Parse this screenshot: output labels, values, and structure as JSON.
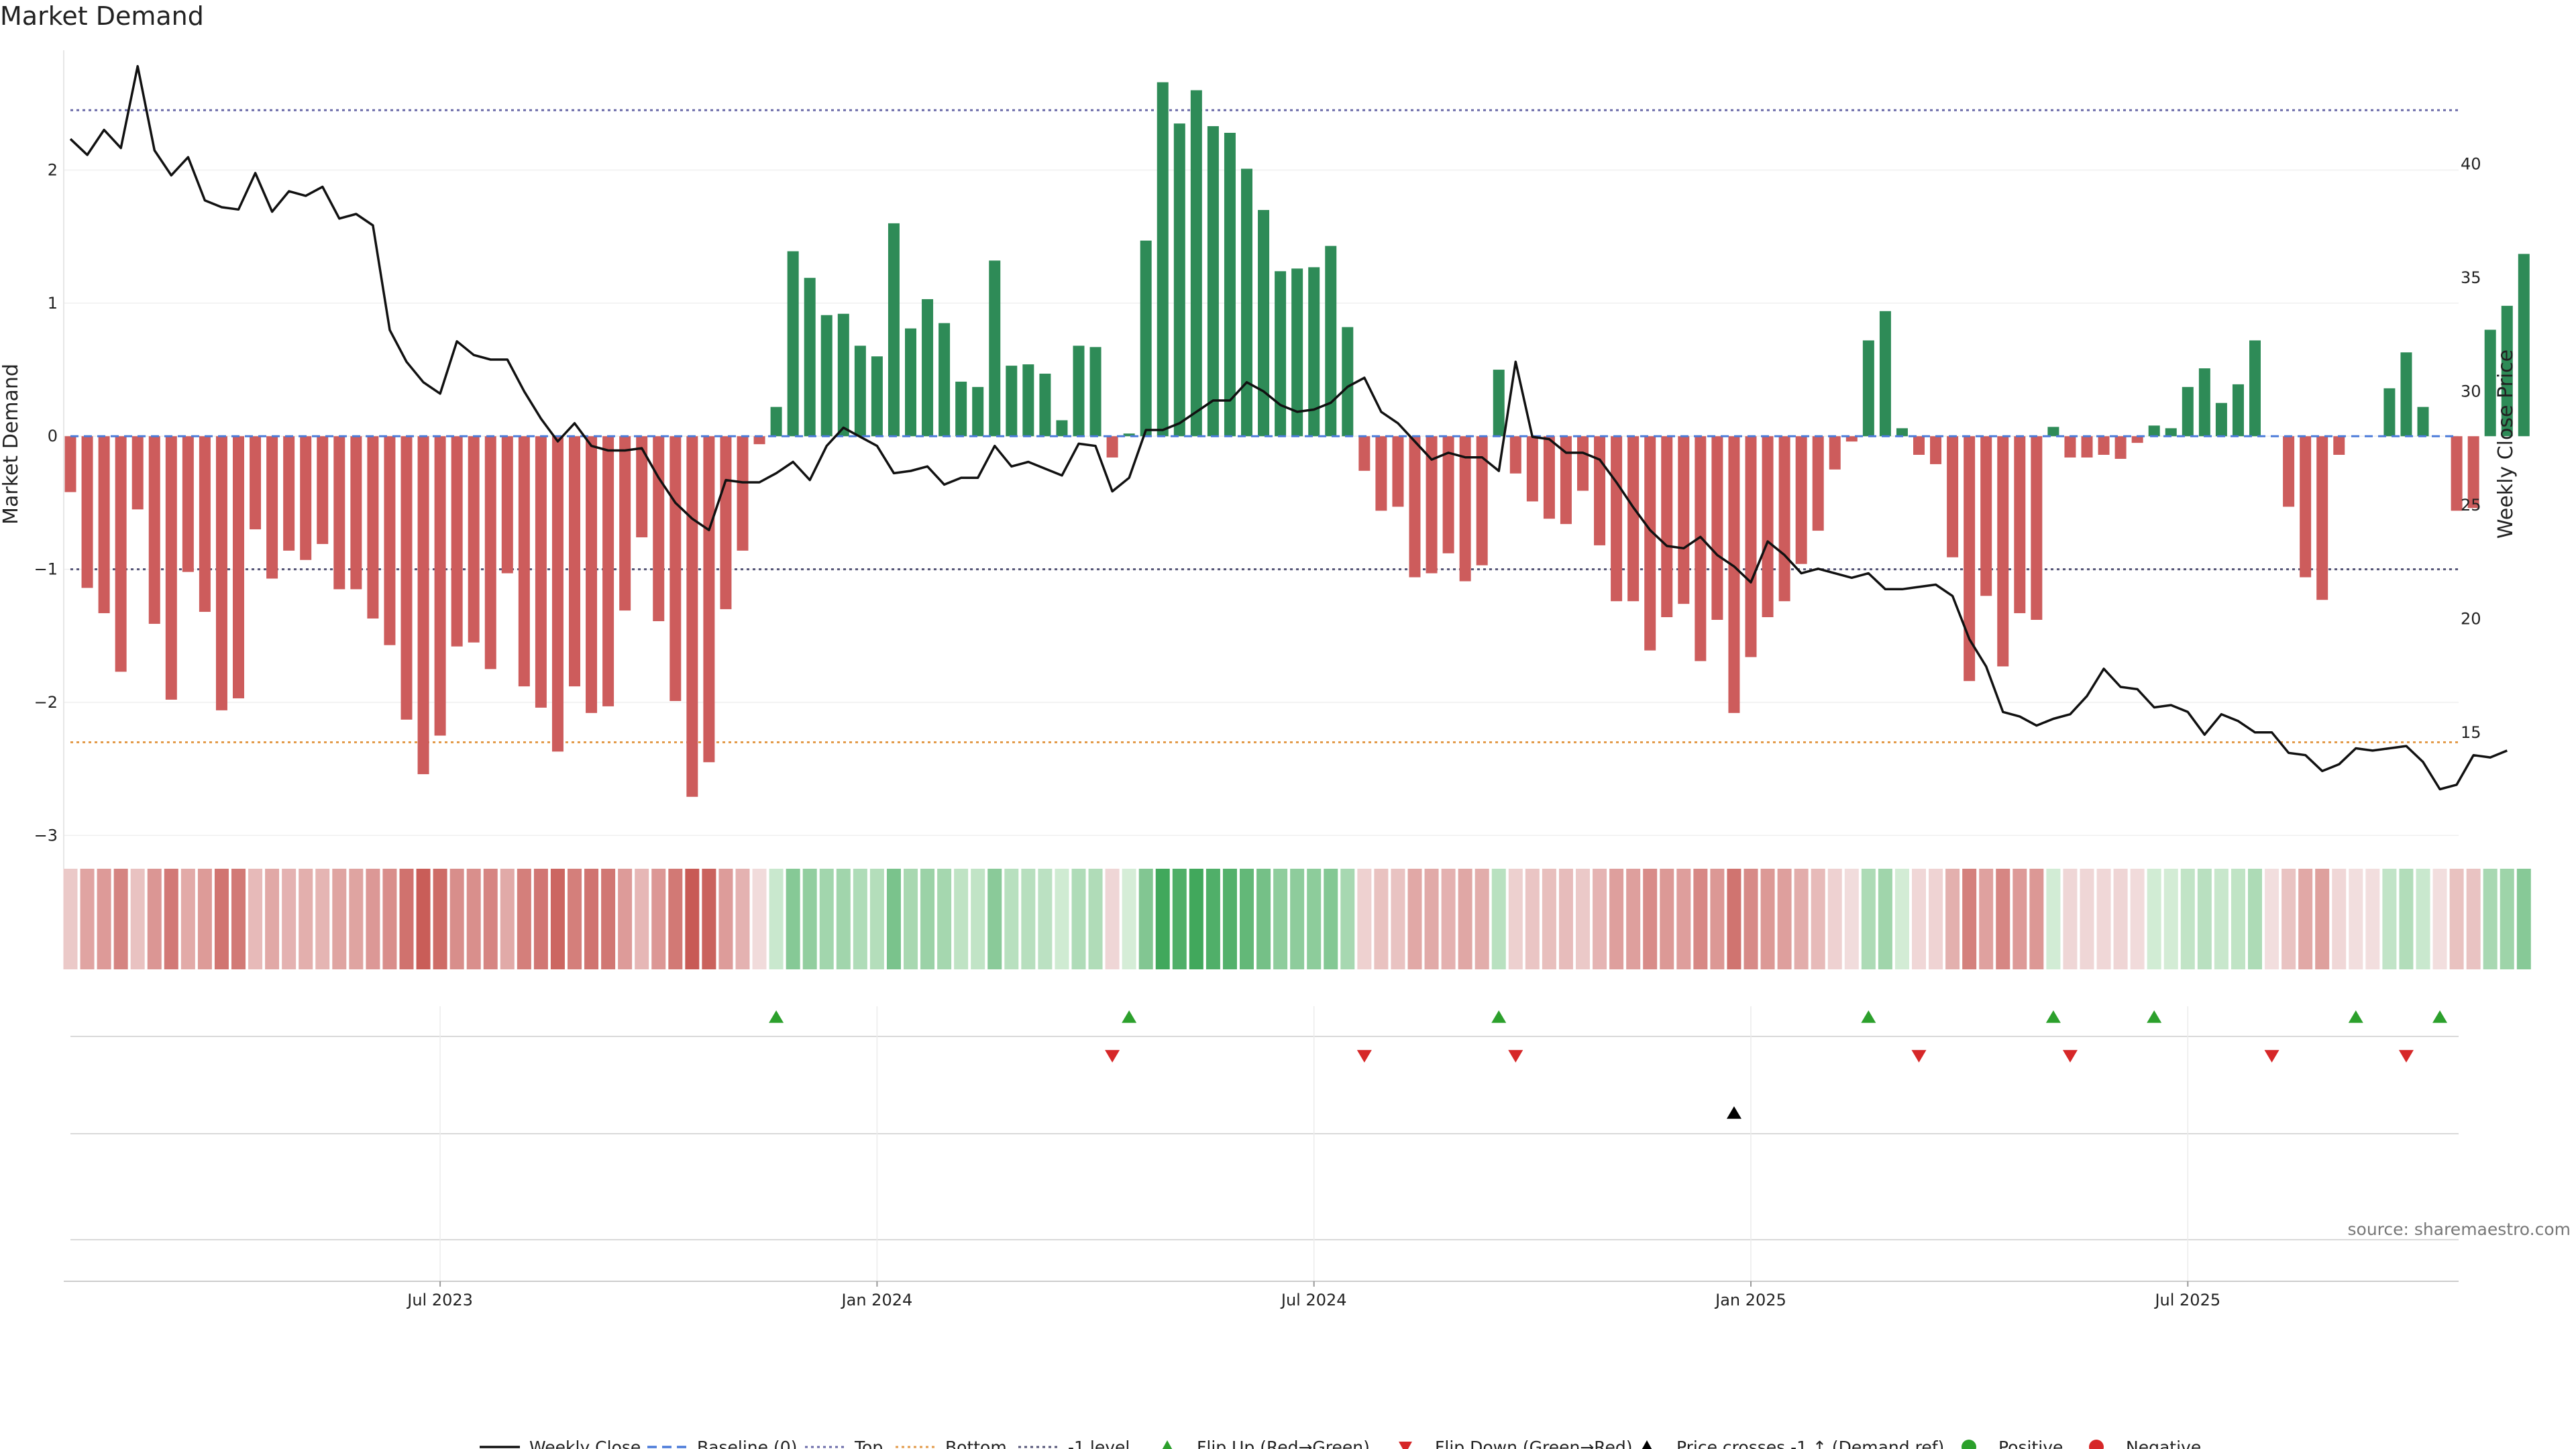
{
  "title": "Market Demand",
  "source": "source: sharemaestro.com",
  "colors": {
    "positive_bar": "#2e8b57",
    "negative_bar": "#cd5c5c",
    "price_line": "#111111",
    "top_line": "#6a6aa8",
    "bottom_line": "#e39b4a",
    "minus_one_line": "#555577",
    "flip_up": "#2ca02c",
    "flip_down": "#d62728",
    "cross_marker": "#000000"
  },
  "chart_data": {
    "type": "bar",
    "title": "Market Demand",
    "ylabel": "Market Demand",
    "y2label": "Weekly Close Price",
    "ylim": [
      -3.2,
      2.9
    ],
    "y2lim": [
      9.3,
      45.0
    ],
    "yticks": [
      -3,
      -2,
      -1,
      0,
      1,
      2
    ],
    "y2ticks": [
      15,
      20,
      25,
      30,
      35,
      40
    ],
    "x_ticks": [
      {
        "label": "Jul 2023",
        "index": 22
      },
      {
        "label": "Jan 2024",
        "index": 48
      },
      {
        "label": "Jul 2024",
        "index": 74
      },
      {
        "label": "Jan 2025",
        "index": 100
      },
      {
        "label": "Jul 2025",
        "index": 126
      }
    ],
    "reference_lines": {
      "top": 2.45,
      "bottom": -2.3,
      "minus_one": -1.0,
      "baseline": 0
    },
    "demand": [
      -0.42,
      -1.14,
      -1.33,
      -1.77,
      -0.55,
      -1.41,
      -1.98,
      -1.02,
      -1.32,
      -2.06,
      -1.97,
      -0.7,
      -1.07,
      -0.86,
      -0.93,
      -0.81,
      -1.15,
      -1.15,
      -1.37,
      -1.57,
      -2.13,
      -2.54,
      -2.25,
      -1.58,
      -1.55,
      -1.75,
      -1.03,
      -1.88,
      -2.04,
      -2.37,
      -1.88,
      -2.08,
      -2.03,
      -1.31,
      -0.76,
      -1.39,
      -1.99,
      -2.71,
      -2.45,
      -1.3,
      -0.86,
      -0.06,
      0.22,
      1.39,
      1.19,
      0.91,
      0.92,
      0.68,
      0.6,
      1.6,
      0.81,
      1.03,
      0.85,
      0.41,
      0.37,
      1.32,
      0.53,
      0.54,
      0.47,
      0.12,
      0.68,
      0.67,
      -0.16,
      0.02,
      1.47,
      2.66,
      2.35,
      2.6,
      2.33,
      2.28,
      2.01,
      1.7,
      1.24,
      1.26,
      1.27,
      1.43,
      0.82,
      -0.26,
      -0.56,
      -0.53,
      -1.06,
      -1.03,
      -0.88,
      -1.09,
      -0.97,
      0.5,
      -0.28,
      -0.49,
      -0.62,
      -0.66,
      -0.41,
      -0.82,
      -1.24,
      -1.24,
      -1.61,
      -1.36,
      -1.26,
      -1.69,
      -1.38,
      -2.08,
      -1.66,
      -1.36,
      -1.24,
      -0.96,
      -0.71,
      -0.25,
      -0.04,
      0.72,
      0.94,
      0.06,
      -0.14,
      -0.21,
      -0.91,
      -1.84,
      -1.2,
      -1.73,
      -1.33,
      -1.38,
      0.07,
      -0.16,
      -0.16,
      -0.14,
      -0.17,
      -0.05,
      0.08,
      0.06,
      0.37,
      0.51,
      0.25,
      0.39,
      0.72,
      0.0,
      -0.53,
      -1.06,
      -1.23,
      -0.14,
      0.0,
      0.0,
      0.36,
      0.63,
      0.22,
      0.0,
      -0.56,
      -0.54,
      0.8,
      0.98,
      1.37
    ],
    "weekly_close": [
      41.1,
      40.4,
      41.5,
      40.7,
      44.3,
      40.6,
      39.5,
      40.3,
      38.4,
      38.1,
      38.0,
      39.6,
      37.9,
      38.8,
      38.6,
      39.0,
      37.6,
      37.8,
      37.3,
      32.7,
      31.3,
      30.4,
      29.9,
      32.2,
      31.6,
      31.4,
      31.4,
      30.0,
      28.8,
      27.8,
      28.6,
      27.6,
      27.4,
      27.4,
      27.5,
      26.2,
      25.1,
      24.4,
      23.9,
      26.1,
      26.0,
      26.0,
      26.4,
      26.9,
      26.1,
      27.6,
      28.4,
      28.0,
      27.6,
      26.4,
      26.5,
      26.7,
      25.9,
      26.2,
      26.2,
      27.6,
      26.7,
      26.9,
      26.6,
      26.3,
      27.7,
      27.6,
      25.6,
      26.2,
      28.3,
      28.3,
      28.6,
      29.1,
      29.6,
      29.6,
      30.4,
      30.0,
      29.4,
      29.1,
      29.2,
      29.5,
      30.2,
      30.6,
      29.1,
      28.6,
      27.8,
      27.0,
      27.3,
      27.1,
      27.1,
      26.5,
      31.3,
      28.0,
      27.9,
      27.3,
      27.3,
      27.0,
      26.0,
      24.9,
      23.9,
      23.2,
      23.1,
      23.6,
      22.8,
      22.3,
      21.6,
      23.4,
      22.8,
      22.0,
      22.2,
      22.0,
      21.8,
      22.0,
      21.3,
      21.3,
      21.4,
      21.5,
      21.0,
      19.1,
      17.9,
      15.9,
      15.7,
      15.3,
      15.6,
      15.8,
      16.6,
      17.8,
      17.0,
      16.9,
      16.1,
      16.2,
      15.9,
      14.9,
      15.8,
      15.5,
      15.0,
      15.0,
      14.1,
      14.0,
      13.3,
      13.6,
      14.3,
      14.2,
      14.3,
      14.4,
      13.7,
      12.5,
      12.7,
      14.0,
      13.9,
      14.2
    ],
    "tile_rows": {
      "flip_up": [
        42,
        63,
        85,
        107,
        118,
        124,
        136,
        141
      ],
      "flip_down": [
        62,
        77,
        86,
        110,
        119,
        131,
        139
      ],
      "price_cross": [
        99
      ]
    },
    "legend": [
      "Weekly Close",
      "Baseline (0)",
      "Top",
      "Bottom",
      "-1 level",
      "Flip Up (Red→Green)",
      "Flip Down (Green→Red)",
      "Price crosses -1 ↑ (Demand ref)",
      "Positive",
      "Negative"
    ]
  },
  "legend_items": [
    {
      "label": "Weekly Close"
    },
    {
      "label": "Baseline (0)"
    },
    {
      "label": "Top"
    },
    {
      "label": "Bottom"
    },
    {
      "label": "-1 level"
    },
    {
      "label": "Flip Up (Red→Green)"
    },
    {
      "label": "Flip Down (Green→Red)"
    },
    {
      "label": "Price crosses -1 ↑ (Demand ref)"
    },
    {
      "label": "Positive"
    },
    {
      "label": "Negative"
    }
  ]
}
